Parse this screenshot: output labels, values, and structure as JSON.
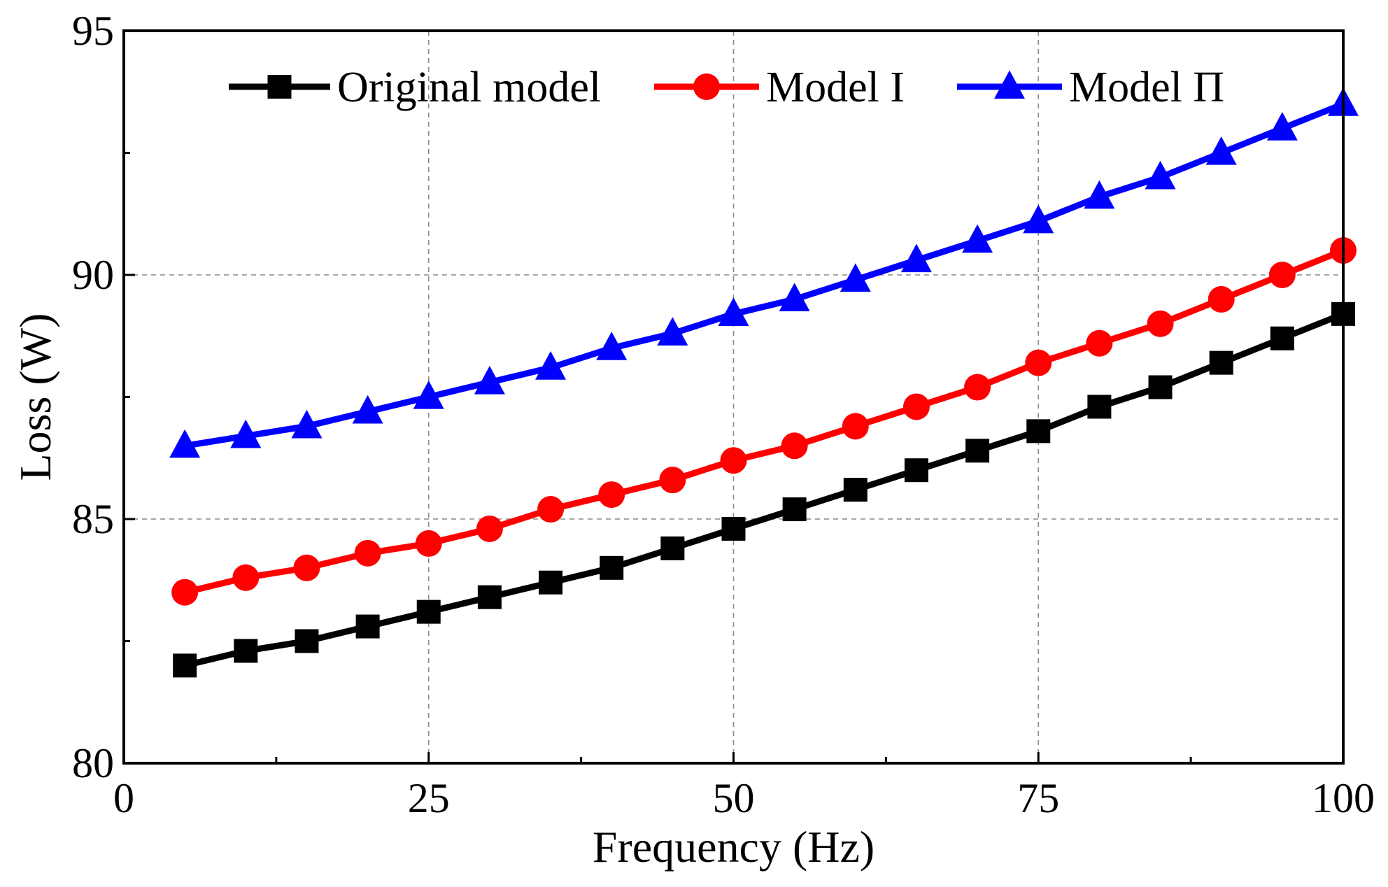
{
  "chart_data": {
    "type": "line",
    "title": "",
    "xlabel": "Frequency (Hz)",
    "ylabel": "Loss (W)",
    "xlim": [
      0,
      100
    ],
    "ylim": [
      80,
      95
    ],
    "xticks": [
      0,
      25,
      50,
      75,
      100
    ],
    "yticks": [
      80,
      85,
      90,
      95
    ],
    "xtick_labels": [
      "0",
      "25",
      "50",
      "75",
      "100"
    ],
    "ytick_labels": [
      "80",
      "85",
      "90",
      "95"
    ],
    "grid": true,
    "legend_position": "top",
    "x": [
      5,
      10,
      15,
      20,
      25,
      30,
      35,
      40,
      45,
      50,
      55,
      60,
      65,
      70,
      75,
      80,
      85,
      90,
      95,
      100
    ],
    "series": [
      {
        "name": "Original model",
        "color": "#000000",
        "marker": "square",
        "values": [
          82.0,
          82.3,
          82.5,
          82.8,
          83.1,
          83.4,
          83.7,
          84.0,
          84.4,
          84.8,
          85.2,
          85.6,
          86.0,
          86.4,
          86.8,
          87.3,
          87.7,
          88.2,
          88.7,
          89.2
        ]
      },
      {
        "name": "Model I",
        "color": "#ff0000",
        "marker": "circle",
        "values": [
          83.5,
          83.8,
          84.0,
          84.3,
          84.5,
          84.8,
          85.2,
          85.5,
          85.8,
          86.2,
          86.5,
          86.9,
          87.3,
          87.7,
          88.2,
          88.6,
          89.0,
          89.5,
          90.0,
          90.5
        ]
      },
      {
        "name": "Model Π",
        "color": "#0000ff",
        "marker": "triangle",
        "values": [
          86.5,
          86.7,
          86.9,
          87.2,
          87.5,
          87.8,
          88.1,
          88.5,
          88.8,
          89.2,
          89.5,
          89.9,
          90.3,
          90.7,
          91.1,
          91.6,
          92.0,
          92.5,
          93.0,
          93.5
        ]
      }
    ]
  }
}
